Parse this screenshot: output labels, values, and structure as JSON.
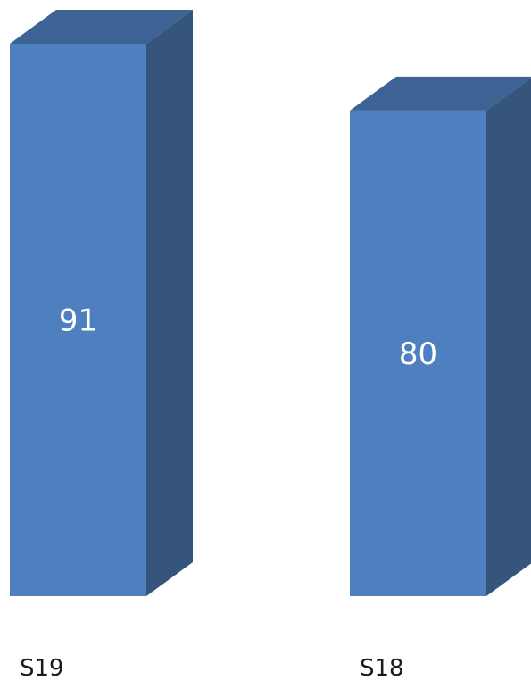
{
  "colors": {
    "front": "#4E7FBE",
    "side": "#35557D",
    "top": "#3C6394",
    "value_text": "#FFFFFF",
    "category_text": "#1A1A1A"
  },
  "chart_data": {
    "type": "bar",
    "style": "3d-column",
    "categories": [
      "S19",
      "S18"
    ],
    "values": [
      91,
      80
    ],
    "data_labels": [
      "91",
      "80"
    ],
    "title": "",
    "xlabel": "",
    "ylabel": "",
    "ylim": [
      0,
      91
    ],
    "grid": false,
    "legend": "none"
  }
}
